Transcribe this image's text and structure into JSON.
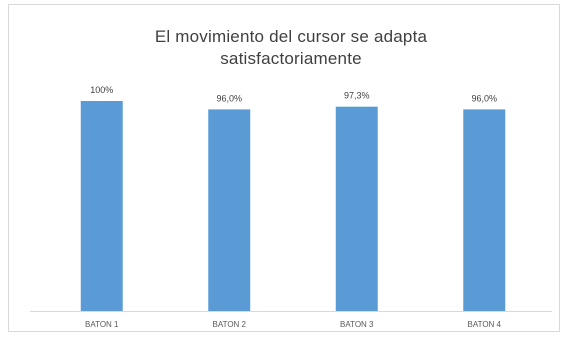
{
  "chart_data": {
    "type": "bar",
    "title_lines": [
      "El movimiento del cursor se adapta",
      "satisfactoriamente"
    ],
    "categories": [
      "BATON 1",
      "BATON 2",
      "BATON 3",
      "BATON 4"
    ],
    "values": [
      100,
      96.0,
      97.3,
      96.0
    ],
    "data_labels": [
      "100%",
      "96,0%",
      "97,3%",
      "96,0%"
    ],
    "xlabel": "",
    "ylabel": "",
    "ylim": [
      0,
      100
    ],
    "grid": false,
    "legend": "none",
    "bar_color": "#5b9bd5"
  }
}
